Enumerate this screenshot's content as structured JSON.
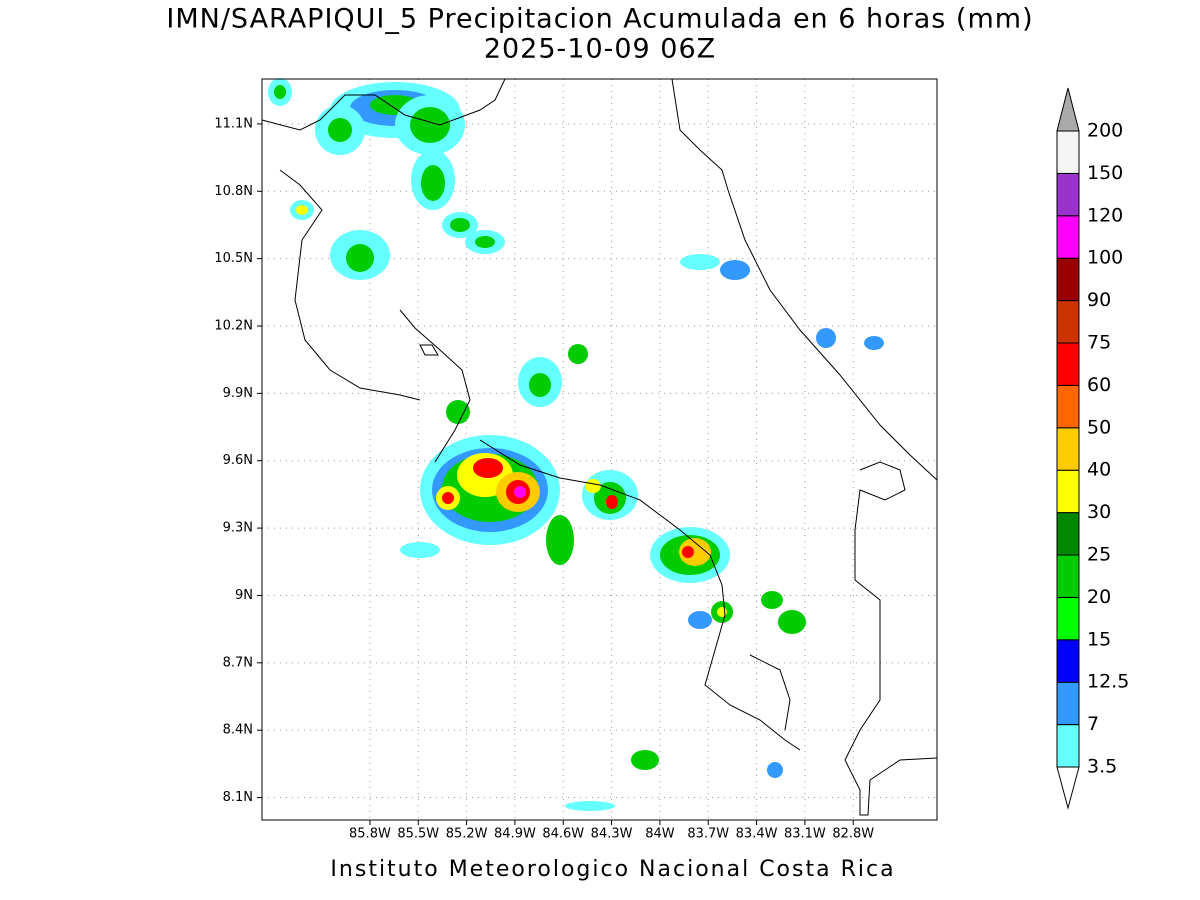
{
  "title": "IMN/SARAPIQUI_5 Precipitacion Acumulada en 6 horas (mm)",
  "subtitle": "2025-10-09 06Z",
  "map": {
    "lon_range": [
      -86.47,
      -82.28
    ],
    "lat_range": [
      8.0,
      11.3
    ],
    "lon_ticks": [
      {
        "value": -85.8,
        "label": "85.8W"
      },
      {
        "value": -85.5,
        "label": "85.5W"
      },
      {
        "value": -85.2,
        "label": "85.2W"
      },
      {
        "value": -84.9,
        "label": "84.9W"
      },
      {
        "value": -84.6,
        "label": "84.6W"
      },
      {
        "value": -84.3,
        "label": "84.3W"
      },
      {
        "value": -84.0,
        "label": "84W"
      },
      {
        "value": -83.7,
        "label": "83.7W"
      },
      {
        "value": -83.4,
        "label": "83.4W"
      },
      {
        "value": -83.1,
        "label": "83.1W"
      },
      {
        "value": -82.8,
        "label": "82.8W"
      }
    ],
    "lat_ticks": [
      {
        "value": 11.1,
        "label": "11.1N"
      },
      {
        "value": 10.8,
        "label": "10.8N"
      },
      {
        "value": 10.5,
        "label": "10.5N"
      },
      {
        "value": 10.2,
        "label": "10.2N"
      },
      {
        "value": 9.9,
        "label": "9.9N"
      },
      {
        "value": 9.6,
        "label": "9.6N"
      },
      {
        "value": 9.3,
        "label": "9.3N"
      },
      {
        "value": 9.0,
        "label": "9N"
      },
      {
        "value": 8.7,
        "label": "8.7N"
      },
      {
        "value": 8.4,
        "label": "8.4N"
      },
      {
        "value": 8.1,
        "label": "8.1N"
      }
    ],
    "grid": true
  },
  "colorbar": {
    "levels": [
      3.5,
      7,
      12.5,
      15,
      20,
      25,
      30,
      40,
      50,
      60,
      75,
      90,
      100,
      120,
      150,
      200
    ],
    "colors": [
      "#ffffff",
      "#66ffff",
      "#3399ff",
      "#0000ff",
      "#00ff00",
      "#00cc00",
      "#008800",
      "#ffff00",
      "#ffcc00",
      "#ff6600",
      "#ff0000",
      "#cc3300",
      "#990000",
      "#ff00ff",
      "#9933cc",
      "#f5f5f5",
      "#aaaaaa"
    ]
  },
  "footer": "Instituto Meteorologico Nacional Costa Rica"
}
